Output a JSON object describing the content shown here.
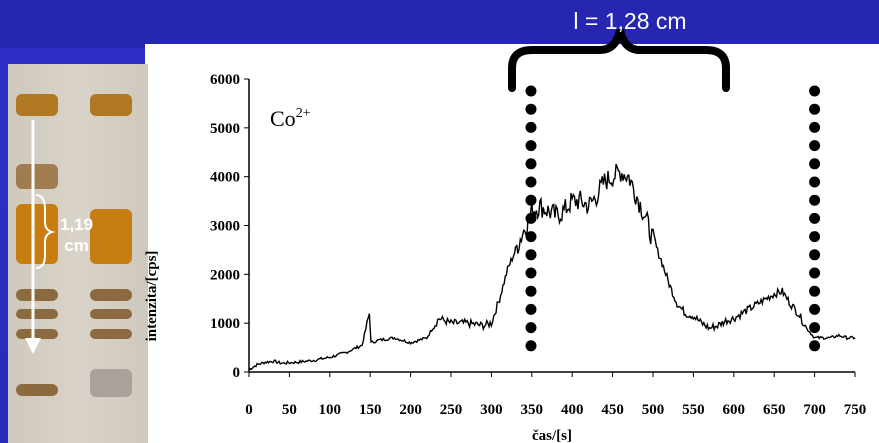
{
  "annotations": {
    "interval_top": "l = 1,28 cm",
    "photo_measure": [
      "1,19",
      "cm"
    ],
    "ion_label": "Co",
    "ion_charge": "2+"
  },
  "chart_data": {
    "type": "line",
    "xlabel": "čas/[s]",
    "ylabel": "intenzita/[cps]",
    "xlim": [
      0,
      750
    ],
    "ylim": [
      0,
      6000
    ],
    "x_ticks": [
      "0",
      "50",
      "100",
      "150",
      "200",
      "250",
      "300",
      "350",
      "400",
      "450",
      "500",
      "550",
      "600",
      "650",
      "700",
      "750"
    ],
    "y_ticks": [
      "0",
      "1000",
      "2000",
      "3000",
      "4000",
      "5000",
      "6000"
    ],
    "series": [
      {
        "x": [
          0,
          10,
          20,
          30,
          40,
          60,
          80,
          100,
          120,
          140,
          149,
          151,
          160,
          180,
          200,
          220,
          235,
          250,
          270,
          290,
          300,
          310,
          320,
          330,
          340,
          350,
          360,
          370,
          380,
          390,
          400,
          410,
          420,
          430,
          440,
          450,
          460,
          470,
          480,
          490,
          500,
          510,
          520,
          530,
          540,
          550,
          560,
          570,
          580,
          590,
          600,
          620,
          640,
          650,
          660,
          670,
          680,
          690,
          700,
          710,
          720,
          730,
          740,
          750
        ],
        "y": [
          50,
          150,
          200,
          220,
          180,
          200,
          240,
          300,
          400,
          550,
          1200,
          600,
          650,
          700,
          600,
          700,
          1100,
          1000,
          1000,
          950,
          1000,
          1500,
          2100,
          2500,
          2900,
          3300,
          3400,
          3300,
          3200,
          3300,
          3500,
          3500,
          3400,
          3600,
          3900,
          4000,
          4100,
          4000,
          3600,
          3200,
          2700,
          2300,
          1800,
          1400,
          1200,
          1150,
          1000,
          900,
          950,
          1050,
          1100,
          1300,
          1500,
          1600,
          1650,
          1400,
          1200,
          900,
          700,
          700,
          700,
          750,
          700,
          700
        ]
      }
    ],
    "markers": {
      "left_x": 349,
      "right_x": 700
    },
    "grid": false,
    "legend": "none"
  }
}
